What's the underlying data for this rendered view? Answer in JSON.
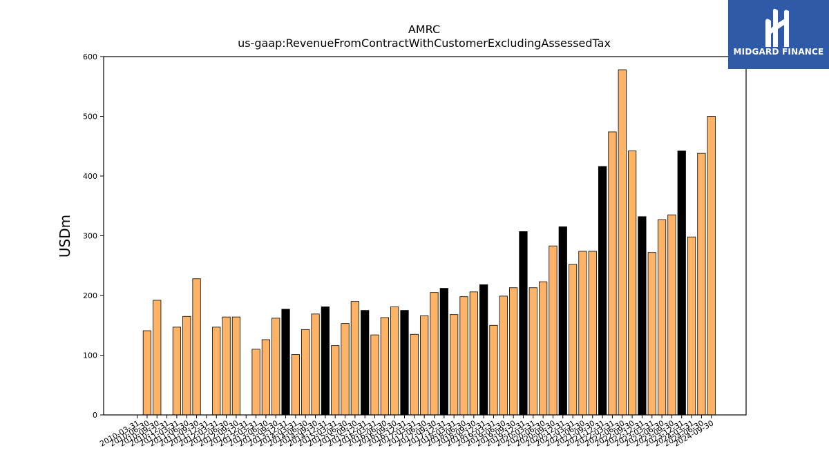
{
  "chart_data": {
    "type": "bar",
    "title": "AMRC",
    "subtitle": "us-gaap:RevenueFromContractWithCustomerExcludingAssessedTax",
    "xlabel": "",
    "ylabel": "USDm",
    "ylim": [
      0,
      600
    ],
    "yticks": [
      "0",
      "100",
      "200",
      "300",
      "400",
      "500",
      "600"
    ],
    "grid": false,
    "categories": [
      "2010-03-31",
      "2010-06-30",
      "2010-09-30",
      "2010-12-31",
      "2011-03-31",
      "2011-06-30",
      "2011-09-30",
      "2011-12-31",
      "2012-03-31",
      "2012-06-30",
      "2012-09-30",
      "2012-12-31",
      "2013-03-31",
      "2013-06-30",
      "2013-09-30",
      "2013-12-31",
      "2014-03-31",
      "2014-06-30",
      "2014-09-30",
      "2014-12-31",
      "2015-03-31",
      "2015-06-30",
      "2015-09-30",
      "2015-12-31",
      "2016-03-31",
      "2016-06-30",
      "2016-09-30",
      "2016-12-31",
      "2017-03-31",
      "2017-06-30",
      "2017-09-30",
      "2017-12-31",
      "2018-03-31",
      "2018-06-30",
      "2018-09-30",
      "2018-12-31",
      "2019-03-31",
      "2019-06-30",
      "2019-09-30",
      "2019-12-31",
      "2020-03-31",
      "2020-06-30",
      "2020-09-30",
      "2020-12-31",
      "2021-03-31",
      "2021-06-30",
      "2021-09-30",
      "2021-12-31",
      "2022-03-31",
      "2022-06-30",
      "2022-09-30",
      "2022-12-31",
      "2023-03-31",
      "2023-06-30",
      "2023-09-30",
      "2023-12-31",
      "2024-03-31",
      "2024-06-30",
      "2024-09-30"
    ],
    "values": [
      null,
      141,
      192,
      null,
      147,
      165,
      228,
      null,
      147,
      164,
      164,
      null,
      110,
      126,
      162,
      177,
      101,
      143,
      169,
      181,
      116,
      153,
      190,
      175,
      134,
      163,
      181,
      175,
      135,
      166,
      205,
      212,
      168,
      198,
      206,
      218,
      150,
      199,
      213,
      307,
      213,
      223,
      283,
      315,
      252,
      274,
      274,
      416,
      474,
      578,
      442,
      332,
      272,
      327,
      335,
      442,
      298,
      438,
      500
    ],
    "bar_colors": [
      "#ffb366",
      "#ffb366",
      "#ffb366",
      "#ffb366",
      "#ffb366",
      "#ffb366",
      "#ffb366",
      "#ffb366",
      "#ffb366",
      "#ffb366",
      "#ffb366",
      "#ffb366",
      "#ffb366",
      "#ffb366",
      "#ffb366",
      "#000000",
      "#ffb366",
      "#ffb366",
      "#ffb366",
      "#000000",
      "#ffb366",
      "#ffb366",
      "#ffb366",
      "#000000",
      "#ffb366",
      "#ffb366",
      "#ffb366",
      "#000000",
      "#ffb366",
      "#ffb366",
      "#ffb366",
      "#000000",
      "#ffb366",
      "#ffb366",
      "#ffb366",
      "#000000",
      "#ffb366",
      "#ffb366",
      "#ffb366",
      "#000000",
      "#ffb366",
      "#ffb366",
      "#ffb366",
      "#000000",
      "#ffb366",
      "#ffb366",
      "#ffb366",
      "#000000",
      "#ffb366",
      "#ffb366",
      "#ffb366",
      "#000000",
      "#ffb366",
      "#ffb366",
      "#ffb366",
      "#000000",
      "#ffb366",
      "#ffb366",
      "#ffb366"
    ],
    "edge_color": "#000000"
  },
  "logo": {
    "text": "MIDGARD FINANCE",
    "background": "#2f5aa8"
  }
}
